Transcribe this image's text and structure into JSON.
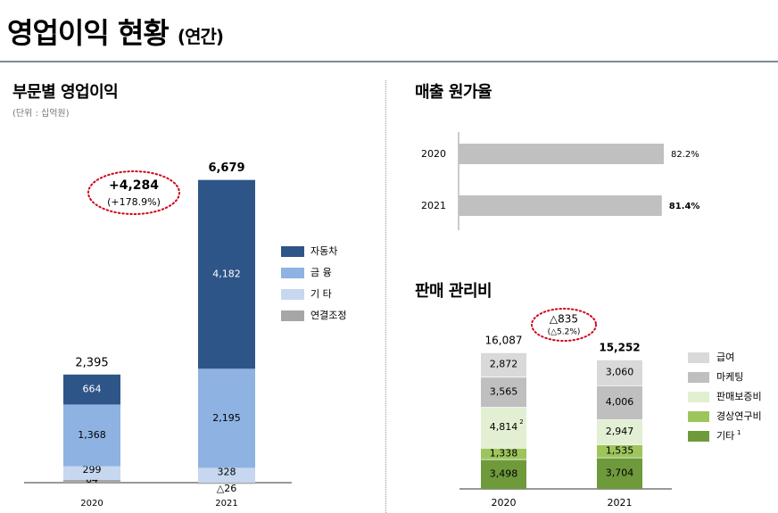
{
  "page": {
    "title": "영업이익 현황",
    "title_suffix": "(연간)"
  },
  "colors": {
    "auto": "#2e5588",
    "finance": "#8eb2e2",
    "other": "#c6d7ef",
    "consolidation": "#a6a6a6",
    "cost_bar": "#c0c0c0",
    "salaries": "#d9d9d9",
    "marketing": "#bfbfbf",
    "warranty": "#e2efd3",
    "rnd": "#9ec45c",
    "sga_other": "#6e9a3c",
    "accent_red": "#d0021b"
  },
  "chart_data": [
    {
      "id": "segment-operating-income",
      "type": "bar",
      "stacked": true,
      "title": "부문별 영업이익",
      "unit": "(단위 : 십억원)",
      "categories": [
        "2020",
        "2021"
      ],
      "series": [
        {
          "name": "연결조정",
          "key": "consolidation",
          "values": [
            64,
            -26
          ],
          "labels": [
            "64",
            "△26"
          ]
        },
        {
          "name": "기 타",
          "key": "other",
          "values": [
            299,
            328
          ],
          "labels": [
            "299",
            "328"
          ]
        },
        {
          "name": "금 융",
          "key": "finance",
          "values": [
            1368,
            2195
          ],
          "labels": [
            "1,368",
            "2,195"
          ]
        },
        {
          "name": "자동차",
          "key": "auto",
          "values": [
            664,
            4182
          ],
          "labels": [
            "664",
            "4,182"
          ]
        }
      ],
      "totals": [
        2395,
        6679
      ],
      "total_labels": [
        "2,395",
        "6,679"
      ],
      "change": {
        "value": "+4,284",
        "pct": "(+178.9%)"
      },
      "legend": [
        "자동차",
        "금 융",
        "기 타",
        "연결조정"
      ],
      "legend_position": "right",
      "ylim": [
        -100,
        7000
      ]
    },
    {
      "id": "cost-of-sales-ratio",
      "type": "bar",
      "orientation": "horizontal",
      "title": "매출 원가율",
      "categories": [
        "2020",
        "2021"
      ],
      "values": [
        82.2,
        81.4
      ],
      "labels": [
        "82.2%",
        "81.4%"
      ],
      "xlim": [
        0,
        100
      ]
    },
    {
      "id": "sga-expenses",
      "type": "bar",
      "stacked": true,
      "title": "판매 관리비",
      "categories": [
        "2020",
        "2021"
      ],
      "series": [
        {
          "name": "기타",
          "key": "sga_other",
          "values": [
            3498,
            3704
          ],
          "labels": [
            "3,498",
            "3,704"
          ]
        },
        {
          "name": "경상연구비",
          "key": "rnd",
          "values": [
            1338,
            1535
          ],
          "labels": [
            "1,338",
            "1,535"
          ]
        },
        {
          "name": "판매보증비",
          "key": "warranty",
          "values": [
            4814,
            2947
          ],
          "labels": [
            "4,814",
            "2,947"
          ]
        },
        {
          "name": "마케팅",
          "key": "marketing",
          "values": [
            3565,
            4006
          ],
          "labels": [
            "3,565",
            "4,006"
          ]
        },
        {
          "name": "급여",
          "key": "salaries",
          "values": [
            2872,
            3060
          ],
          "labels": [
            "2,872",
            "3,060"
          ]
        }
      ],
      "totals": [
        16087,
        15252
      ],
      "total_labels": [
        "16,087",
        "15,252"
      ],
      "change": {
        "value": "△835",
        "pct": "(△5.2%)"
      },
      "legend": [
        "급여",
        "마케팅",
        "판매보증비",
        "경상연구비",
        "기타"
      ],
      "legend_superscript": {
        "기타": "1"
      },
      "value_superscript": {
        "4,814": "2"
      },
      "legend_position": "right",
      "ylim": [
        0,
        17000
      ]
    }
  ]
}
